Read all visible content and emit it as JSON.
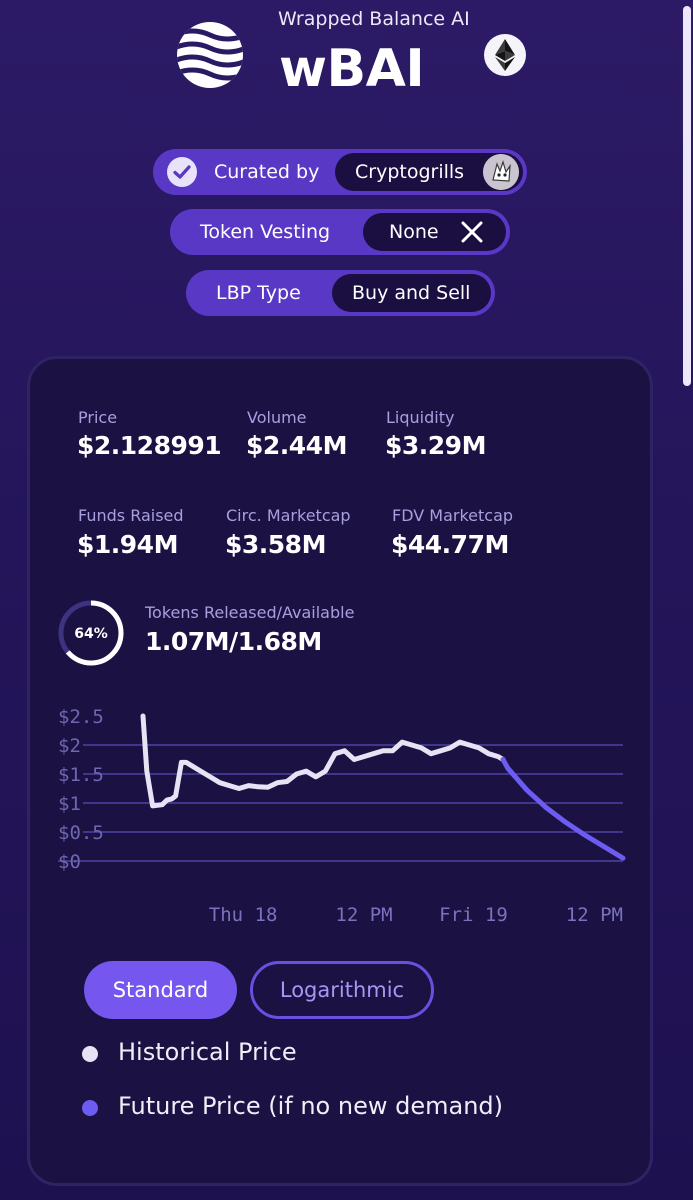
{
  "header": {
    "subtitle": "Wrapped Balance AI",
    "token_symbol": "wBAI",
    "logo_icon": "wave-sphere-logo-icon",
    "network_icon": "ethereum-icon"
  },
  "badges": {
    "curated": {
      "label": "Curated by",
      "value": "Cryptogrills",
      "icon": "check-circle-icon",
      "avatar_icon": "curator-avatar-icon"
    },
    "vesting": {
      "label": "Token Vesting",
      "value": "None",
      "icon": "close-icon"
    },
    "lbp": {
      "label": "LBP Type",
      "value": "Buy and Sell"
    }
  },
  "stats": {
    "price": {
      "label": "Price",
      "value": "$2.128991"
    },
    "volume": {
      "label": "Volume",
      "value": "$2.44M"
    },
    "liquidity": {
      "label": "Liquidity",
      "value": "$3.29M"
    },
    "funds_raised": {
      "label": "Funds Raised",
      "value": "$1.94M"
    },
    "circ_marketcap": {
      "label": "Circ. Marketcap",
      "value": "$3.58M"
    },
    "fdv_marketcap": {
      "label": "FDV Marketcap",
      "value": "$44.77M"
    },
    "tokens": {
      "label": "Tokens Released/Available",
      "value": "1.07M/1.68M",
      "percent_label": "64%",
      "percent": 0.64
    }
  },
  "chart_data": {
    "type": "line",
    "title": "",
    "xlabel": "",
    "ylabel": "",
    "ylim": [
      0,
      2.5
    ],
    "y_ticks": [
      "$0",
      "$0.5",
      "$1",
      "$1.5",
      "$2",
      "$2.5"
    ],
    "x_tick_labels": [
      "Thu 18",
      "12 PM",
      "Fri 19",
      "12 PM"
    ],
    "x_tick_positions": [
      20,
      32,
      44,
      56
    ],
    "xlim": [
      6,
      56
    ],
    "series": [
      {
        "name": "Historical Price",
        "color": "#e6e3f5",
        "x": [
          6,
          6.4,
          7.0,
          8.0,
          8.5,
          9.0,
          9.4,
          10.0,
          10.5,
          11,
          12,
          13,
          14,
          15,
          16,
          17,
          18,
          19,
          20,
          21,
          22,
          23,
          24,
          25,
          26,
          27,
          28,
          29,
          30,
          31,
          32,
          33,
          34,
          35,
          36,
          37,
          38,
          39,
          40,
          41,
          42,
          43,
          43.5
        ],
        "y": [
          2.5,
          1.55,
          0.95,
          0.97,
          1.05,
          1.07,
          1.12,
          1.7,
          1.7,
          1.65,
          1.55,
          1.45,
          1.35,
          1.3,
          1.25,
          1.3,
          1.28,
          1.27,
          1.35,
          1.37,
          1.5,
          1.55,
          1.45,
          1.55,
          1.85,
          1.9,
          1.75,
          1.8,
          1.85,
          1.9,
          1.9,
          2.05,
          2.0,
          1.95,
          1.85,
          1.9,
          1.95,
          2.05,
          2.0,
          1.95,
          1.85,
          1.8,
          1.75
        ]
      },
      {
        "name": "Future Price (if no new demand)",
        "color": "#6c5cf2",
        "x": [
          43.5,
          44,
          46,
          48,
          50,
          52,
          54,
          56
        ],
        "y": [
          1.75,
          1.6,
          1.22,
          0.92,
          0.67,
          0.45,
          0.25,
          0.05
        ]
      }
    ]
  },
  "controls": {
    "standard_label": "Standard",
    "log_label": "Logarithmic"
  },
  "legend": {
    "historical_label": "Historical Price",
    "historical_color": "#e6e3f5",
    "future_label": "Future Price (if no new demand)",
    "future_color": "#6c5cf2"
  }
}
